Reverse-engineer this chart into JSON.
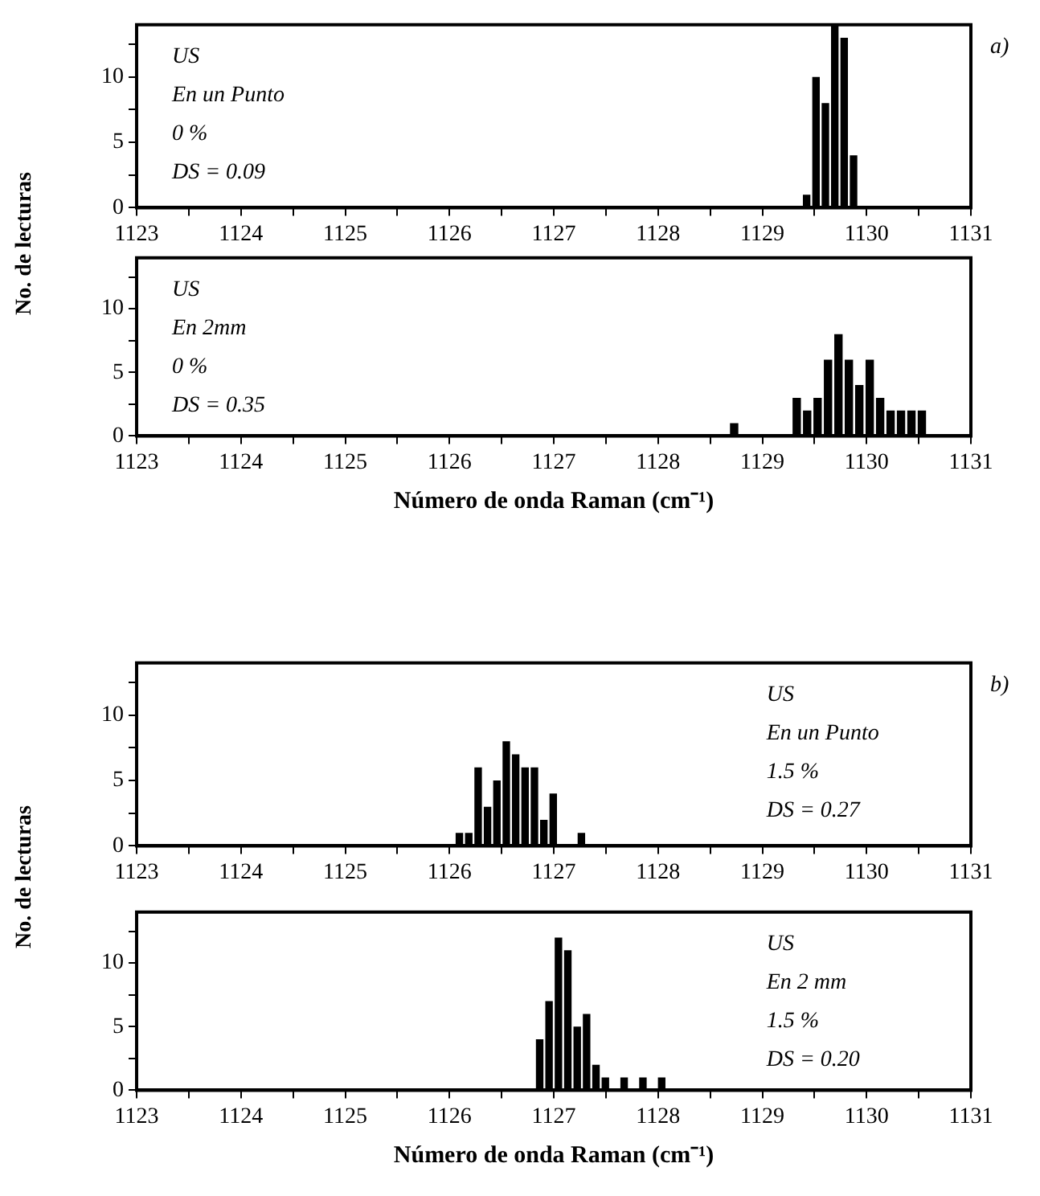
{
  "chart_data": [
    {
      "type": "histogram",
      "ylabel": "No. de lecturas",
      "annotations": [
        "a)",
        "US",
        "En un Punto",
        "0 %",
        "DS = 0.09"
      ],
      "bins": [
        1129.38,
        1129.47,
        1129.56,
        1129.65,
        1129.74,
        1129.83,
        1129.92
      ],
      "values": [
        1,
        10,
        8,
        14,
        13,
        4
      ],
      "color": "#000000",
      "xlim": [
        1123,
        1131
      ],
      "xticks": [
        1123,
        {
          "value": 1123.5,
          "label": null
        },
        1124,
        {
          "value": 1124.5,
          "label": null
        },
        1125,
        {
          "value": 1125.5,
          "label": null
        },
        1126,
        {
          "value": 1126.5,
          "label": null
        },
        1127,
        {
          "value": 1127.5,
          "label": null
        },
        1128,
        {
          "value": 1128.5,
          "label": null
        },
        1129,
        {
          "value": 1129.5,
          "label": null
        },
        1130,
        {
          "value": 1130.5,
          "label": null
        },
        1131
      ],
      "ylim": [
        0,
        14
      ],
      "yticks": [
        0,
        {
          "value": 2.5,
          "label": null
        },
        5,
        {
          "value": 7.5,
          "label": null
        },
        10,
        {
          "value": 12.5,
          "label": null
        }
      ],
      "grid": false,
      "legend": false
    },
    {
      "type": "histogram",
      "xlabel": "Número de onda Raman (cm⁻¹)",
      "annotations": [
        "US",
        "En 2mm",
        "0 %",
        "DS = 0.35"
      ],
      "bins": [
        1128.68,
        1128.78,
        1128.88,
        1128.98,
        1129.08,
        1129.18,
        1129.28,
        1129.38,
        1129.48,
        1129.58,
        1129.68,
        1129.78,
        1129.88,
        1129.98,
        1130.08,
        1130.18,
        1130.28,
        1130.38,
        1130.48,
        1130.58
      ],
      "values": [
        1,
        0,
        0,
        0,
        0,
        0,
        3,
        2,
        3,
        6,
        8,
        6,
        4,
        6,
        3,
        2,
        2,
        2,
        2
      ],
      "color": "#000000",
      "xlim": [
        1123,
        1131
      ],
      "xticks": [
        1123,
        {
          "value": 1123.5,
          "label": null
        },
        1124,
        {
          "value": 1124.5,
          "label": null
        },
        1125,
        {
          "value": 1125.5,
          "label": null
        },
        1126,
        {
          "value": 1126.5,
          "label": null
        },
        1127,
        {
          "value": 1127.5,
          "label": null
        },
        1128,
        {
          "value": 1128.5,
          "label": null
        },
        1129,
        {
          "value": 1129.5,
          "label": null
        },
        1130,
        {
          "value": 1130.5,
          "label": null
        },
        1131
      ],
      "ylim": [
        0,
        14
      ],
      "yticks": [
        0,
        {
          "value": 2.5,
          "label": null
        },
        5,
        {
          "value": 7.5,
          "label": null
        },
        10,
        {
          "value": 12.5,
          "label": null
        }
      ],
      "grid": false,
      "legend": false
    },
    {
      "type": "histogram",
      "ylabel": "No. de lecturas",
      "annotations": [
        "b)",
        "US",
        "En un Punto",
        "1.5 %",
        "DS = 0.27"
      ],
      "bins": [
        1126.05,
        1126.14,
        1126.23,
        1126.32,
        1126.41,
        1126.5,
        1126.59,
        1126.68,
        1126.77,
        1126.86,
        1126.95,
        1127.04,
        1127.13,
        1127.22,
        1127.31
      ],
      "values": [
        1,
        1,
        6,
        3,
        5,
        8,
        7,
        6,
        6,
        2,
        4,
        0,
        0,
        1
      ],
      "color": "#000000",
      "xlim": [
        1123,
        1131
      ],
      "xticks": [
        1123,
        {
          "value": 1123.5,
          "label": null
        },
        1124,
        {
          "value": 1124.5,
          "label": null
        },
        1125,
        {
          "value": 1125.5,
          "label": null
        },
        1126,
        {
          "value": 1126.5,
          "label": null
        },
        1127,
        {
          "value": 1127.5,
          "label": null
        },
        1128,
        {
          "value": 1128.5,
          "label": null
        },
        1129,
        {
          "value": 1129.5,
          "label": null
        },
        1130,
        {
          "value": 1130.5,
          "label": null
        },
        1131
      ],
      "ylim": [
        0,
        14
      ],
      "yticks": [
        0,
        {
          "value": 2.5,
          "label": null
        },
        5,
        {
          "value": 7.5,
          "label": null
        },
        10,
        {
          "value": 12.5,
          "label": null
        }
      ],
      "grid": false,
      "legend": false
    },
    {
      "type": "histogram",
      "xlabel": "Número de onda Raman (cm⁻¹)",
      "annotations": [
        "US",
        "En 2 mm",
        "1.5 %",
        "DS = 0.20"
      ],
      "bins": [
        1126.82,
        1126.91,
        1127.0,
        1127.09,
        1127.18,
        1127.27,
        1127.36,
        1127.45,
        1127.54,
        1127.63,
        1127.72,
        1127.81,
        1127.9,
        1127.99,
        1128.08
      ],
      "values": [
        4,
        7,
        12,
        11,
        5,
        6,
        2,
        1,
        0,
        1,
        0,
        1,
        0,
        1
      ],
      "color": "#000000",
      "xlim": [
        1123,
        1131
      ],
      "xticks": [
        1123,
        {
          "value": 1123.5,
          "label": null
        },
        1124,
        {
          "value": 1124.5,
          "label": null
        },
        1125,
        {
          "value": 1125.5,
          "label": null
        },
        1126,
        {
          "value": 1126.5,
          "label": null
        },
        1127,
        {
          "value": 1127.5,
          "label": null
        },
        1128,
        {
          "value": 1128.5,
          "label": null
        },
        1129,
        {
          "value": 1129.5,
          "label": null
        },
        1130,
        {
          "value": 1130.5,
          "label": null
        },
        1131
      ],
      "ylim": [
        0,
        14
      ],
      "yticks": [
        0,
        {
          "value": 2.5,
          "label": null
        },
        5,
        {
          "value": 7.5,
          "label": null
        },
        10,
        {
          "value": 12.5,
          "label": null
        }
      ],
      "grid": false,
      "legend": false
    }
  ]
}
